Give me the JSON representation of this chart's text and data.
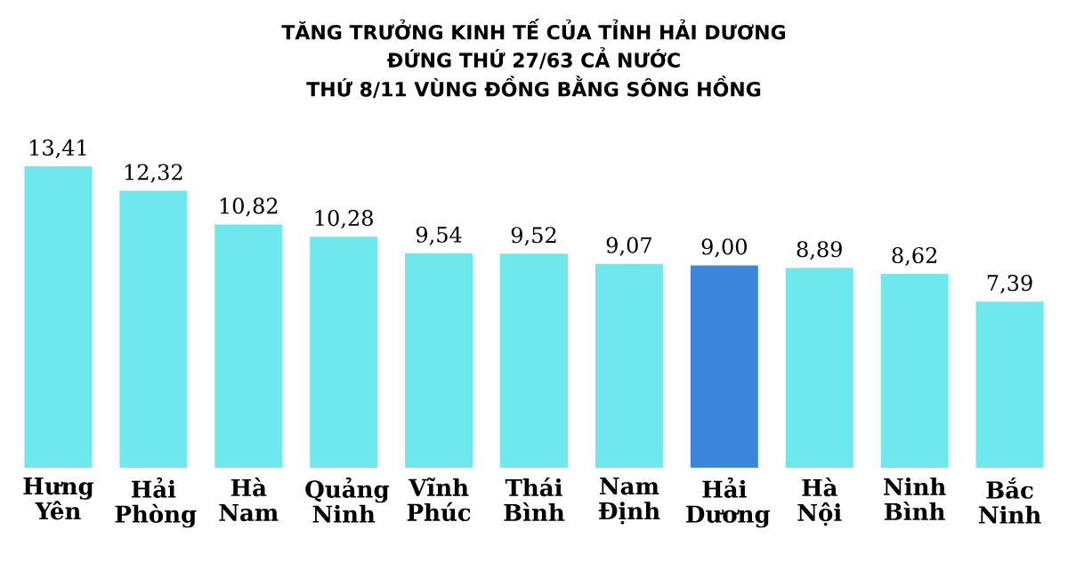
{
  "chart_data": {
    "type": "bar",
    "title": "TĂNG TRƯỞNG KINH TẾ CỦA TỈNH HẢI DƯƠNG",
    "subtitle": "ĐỨNG THỨ 27/63 CẢ NƯỚC",
    "annotations": [
      "THỨ 8/11 VÙNG ĐỒNG BẰNG SÔNG HỒNG"
    ],
    "categories": [
      "Hưng Yên",
      "Hải Phòng",
      "Hà Nam",
      "Quảng Ninh",
      "Vĩnh Phúc",
      "Thái Bình",
      "Nam Định",
      "Hải Dương",
      "Hà Nội",
      "Ninh Bình",
      "Bắc Ninh"
    ],
    "values": [
      13.41,
      12.32,
      10.82,
      10.28,
      9.54,
      9.52,
      9.07,
      9.0,
      8.89,
      8.62,
      7.39
    ],
    "colors": [
      "#6ee8ec",
      "#6ee8ec",
      "#6ee8ec",
      "#6ee8ec",
      "#6ee8ec",
      "#6ee8ec",
      "#6ee8ec",
      "#3b86dc",
      "#6ee8ec",
      "#6ee8ec",
      "#6ee8ec"
    ],
    "value_labels": [
      "13,41",
      "12,32",
      "10,82",
      "10,28",
      "9,54",
      "9,52",
      "9,07",
      "9,00",
      "8,89",
      "8,62",
      "7,39"
    ]
  }
}
